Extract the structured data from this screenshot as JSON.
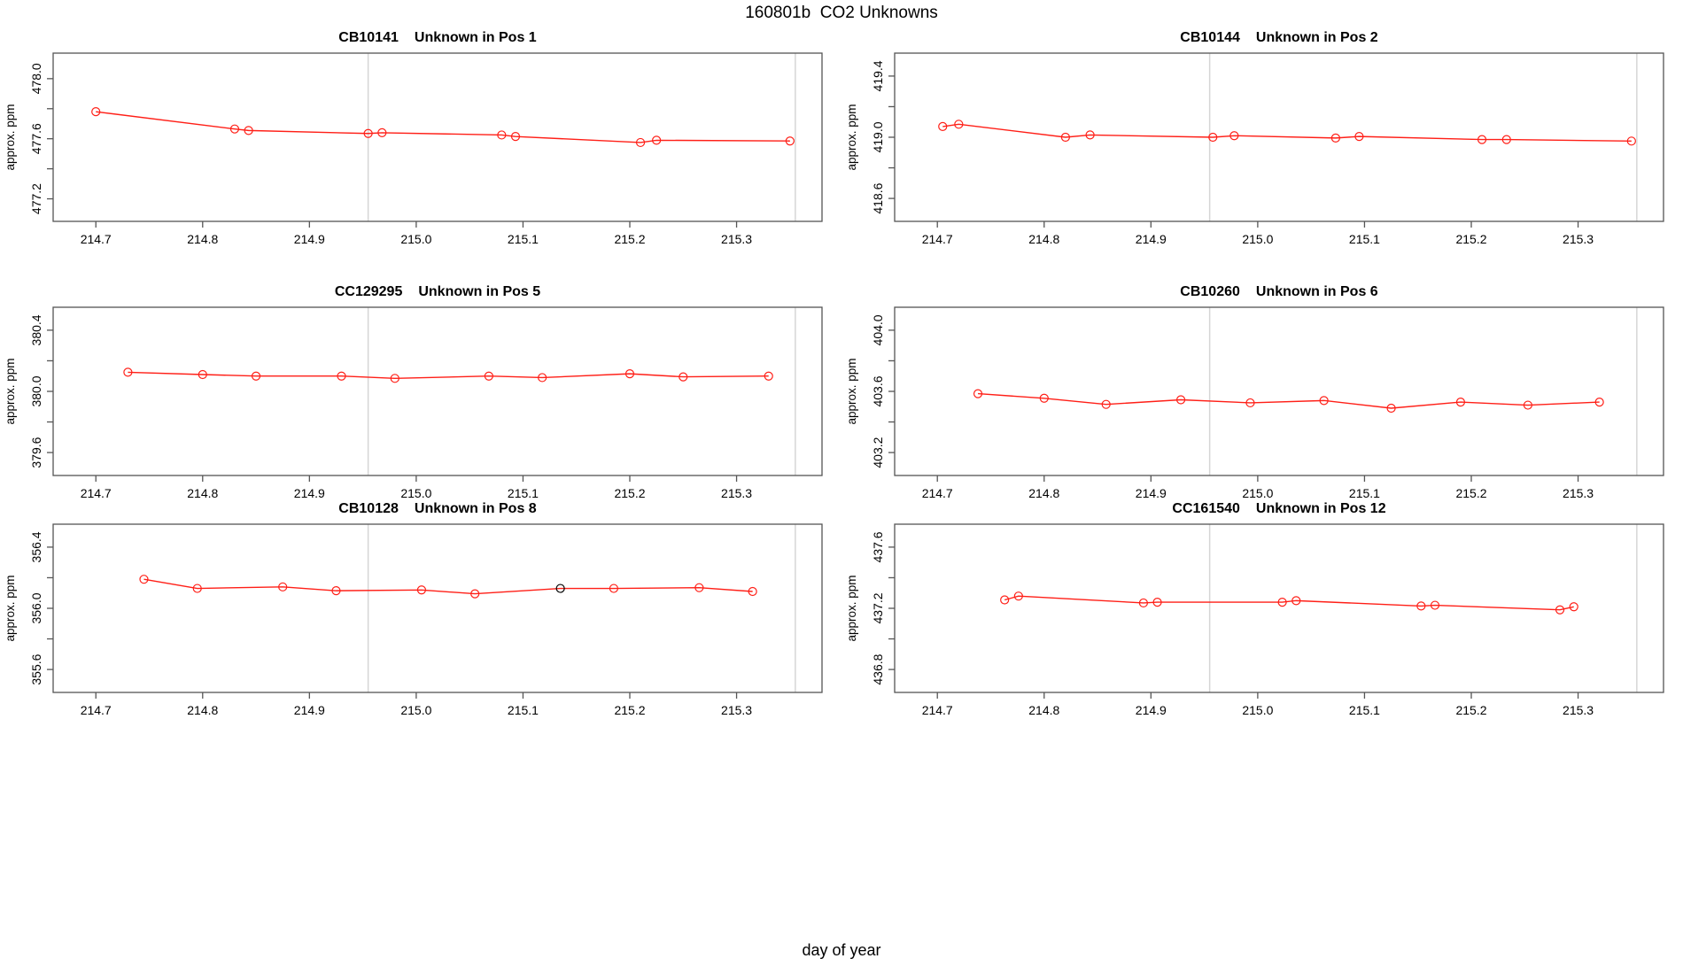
{
  "figure": {
    "title": "160801b  CO2 Unknowns",
    "x_axis_title": "day of year"
  },
  "style": {
    "series_color": "#ff1f17",
    "special_point_color": "#000000",
    "reference_line_color": "#d6d6d6",
    "axis_color": "#555555",
    "text_color": "#000000",
    "background_color": "#ffffff"
  },
  "axes_shared": {
    "xlim": [
      214.66,
      215.38
    ],
    "xtick_labels": [
      "214.7",
      "214.8",
      "214.9",
      "215.0",
      "215.1",
      "215.2",
      "215.3"
    ],
    "vlines": [
      214.955,
      215.355
    ],
    "ylabel": "approx. ppm"
  },
  "chart_data": [
    {
      "type": "line",
      "sample": "CB10141",
      "position_label": "Unknown in Pos 1",
      "ylim": [
        477.05,
        478.17
      ],
      "yticks": [
        477.2,
        477.4,
        477.6,
        477.8,
        478.0
      ],
      "ytick_labels": [
        "477.2",
        "477.6",
        "478.0"
      ],
      "x": [
        214.7,
        214.83,
        214.843,
        214.955,
        214.968,
        215.08,
        215.093,
        215.21,
        215.225,
        215.35
      ],
      "y": [
        477.78,
        477.665,
        477.655,
        477.635,
        477.64,
        477.625,
        477.615,
        477.575,
        477.59,
        477.585
      ]
    },
    {
      "type": "line",
      "sample": "CB10144",
      "position_label": "Unknown in Pos 2",
      "ylim": [
        418.45,
        419.55
      ],
      "yticks": [
        418.6,
        418.8,
        419.0,
        419.2,
        419.4
      ],
      "ytick_labels": [
        "418.6",
        "419.0",
        "419.4"
      ],
      "x": [
        214.705,
        214.72,
        214.82,
        214.843,
        214.958,
        214.978,
        215.073,
        215.095,
        215.21,
        215.233,
        215.35
      ],
      "y": [
        419.07,
        419.085,
        419.0,
        419.015,
        419.0,
        419.01,
        418.995,
        419.005,
        418.985,
        418.985,
        418.975
      ]
    },
    {
      "type": "line",
      "sample": "CC129295",
      "position_label": "Unknown in Pos 5",
      "ylim": [
        379.45,
        380.55
      ],
      "yticks": [
        379.6,
        379.8,
        380.0,
        380.2,
        380.4
      ],
      "ytick_labels": [
        "379.6",
        "380.0",
        "380.4"
      ],
      "x": [
        214.73,
        214.8,
        214.85,
        214.93,
        214.98,
        215.068,
        215.118,
        215.2,
        215.25,
        215.33
      ],
      "y": [
        380.125,
        380.11,
        380.1,
        380.1,
        380.085,
        380.1,
        380.09,
        380.115,
        380.095,
        380.1
      ]
    },
    {
      "type": "line",
      "sample": "CB10260",
      "position_label": "Unknown in Pos 6",
      "ylim": [
        403.05,
        404.15
      ],
      "yticks": [
        403.2,
        403.4,
        403.6,
        403.8,
        404.0
      ],
      "ytick_labels": [
        "403.2",
        "403.6",
        "404.0"
      ],
      "x": [
        214.738,
        214.8,
        214.858,
        214.928,
        214.993,
        215.062,
        215.125,
        215.19,
        215.253,
        215.32
      ],
      "y": [
        403.585,
        403.555,
        403.515,
        403.545,
        403.525,
        403.54,
        403.49,
        403.53,
        403.51,
        403.53
      ]
    },
    {
      "type": "line",
      "sample": "CB10128",
      "position_label": "Unknown in Pos 8",
      "ylim": [
        355.45,
        356.55
      ],
      "yticks": [
        355.6,
        355.8,
        356.0,
        356.2,
        356.4
      ],
      "ytick_labels": [
        "355.6",
        "356.0",
        "356.4"
      ],
      "special_point_index": 6,
      "x": [
        214.745,
        214.795,
        214.875,
        214.925,
        215.005,
        215.055,
        215.135,
        215.185,
        215.265,
        215.315
      ],
      "y": [
        356.19,
        356.13,
        356.14,
        356.115,
        356.12,
        356.095,
        356.13,
        356.13,
        356.135,
        356.11
      ]
    },
    {
      "type": "line",
      "sample": "CC161540",
      "position_label": "Unknown in Pos 12",
      "ylim": [
        436.65,
        437.75
      ],
      "yticks": [
        436.8,
        437.0,
        437.2,
        437.4,
        437.6
      ],
      "ytick_labels": [
        "436.8",
        "437.2",
        "437.6"
      ],
      "x": [
        214.763,
        214.776,
        214.893,
        214.906,
        215.023,
        215.036,
        215.153,
        215.166,
        215.283,
        215.296
      ],
      "y": [
        437.255,
        437.28,
        437.235,
        437.24,
        437.24,
        437.25,
        437.215,
        437.22,
        437.19,
        437.21
      ]
    }
  ]
}
